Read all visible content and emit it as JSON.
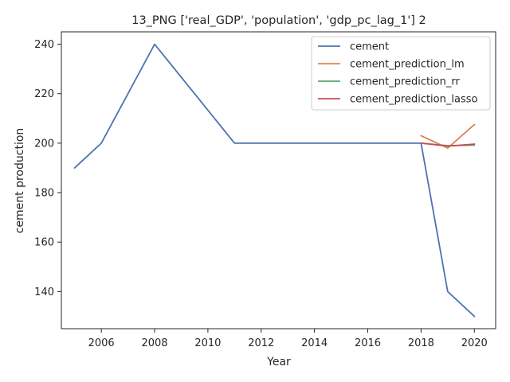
{
  "chart_data": {
    "type": "line",
    "title": "13_PNG ['real_GDP', 'population', 'gdp_pc_lag_1'] 2",
    "xlabel": "Year",
    "ylabel": "cement production",
    "xlim": [
      2004.5,
      2020.8
    ],
    "ylim": [
      125,
      245
    ],
    "xticks": [
      2006,
      2008,
      2010,
      2012,
      2014,
      2016,
      2018,
      2020
    ],
    "yticks": [
      140,
      160,
      180,
      200,
      220,
      240
    ],
    "grid": false,
    "legend_position": "top-right",
    "series": [
      {
        "name": "cement",
        "color": "#4c72b0",
        "x": [
          2005,
          2006,
          2008,
          2011,
          2018,
          2019,
          2020
        ],
        "y": [
          190,
          200,
          240,
          200,
          200,
          140,
          130
        ]
      },
      {
        "name": "cement_prediction_lm",
        "color": "#dd8452",
        "x": [
          2018,
          2019,
          2020
        ],
        "y": [
          203,
          198,
          207.5
        ]
      },
      {
        "name": "cement_prediction_rr",
        "color": "#55a868",
        "x": [
          2018,
          2019,
          2020
        ],
        "y": [
          200,
          199,
          199.2
        ]
      },
      {
        "name": "cement_prediction_lasso",
        "color": "#c44e52",
        "x": [
          2018,
          2019,
          2020
        ],
        "y": [
          200,
          198.8,
          199.6
        ]
      }
    ]
  }
}
